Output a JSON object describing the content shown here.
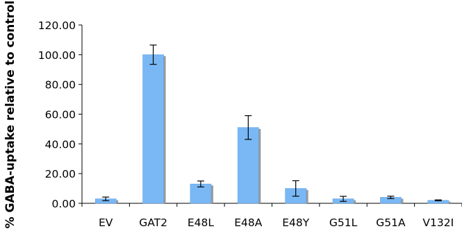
{
  "chart_data": {
    "type": "bar",
    "title": "",
    "xlabel": "",
    "ylabel": "% GABA-uptake relative to control",
    "categories": [
      "EV",
      "GAT2",
      "E48L",
      "E48A",
      "E48Y",
      "G51L",
      "G51A",
      "V132I"
    ],
    "values": [
      3.0,
      100.0,
      13.0,
      51.0,
      10.0,
      3.0,
      4.0,
      2.0
    ],
    "errors": [
      1.2,
      6.5,
      2.0,
      8.0,
      5.2,
      1.7,
      0.8,
      0.3
    ],
    "ylim": [
      0,
      120
    ],
    "ytick_values": [
      0,
      20,
      40,
      60,
      80,
      100,
      120
    ],
    "ytick_labels": [
      "0.00",
      "20.00",
      "40.00",
      "60.00",
      "80.00",
      "100.00",
      "120.00"
    ],
    "grid": false,
    "legend": "none",
    "colors": {
      "bar": "#7ab8f5",
      "bar_edge": "#5f9fe0",
      "bar_shadow": "#9a9a9a",
      "axis": "#000000",
      "text": "#000000"
    }
  }
}
